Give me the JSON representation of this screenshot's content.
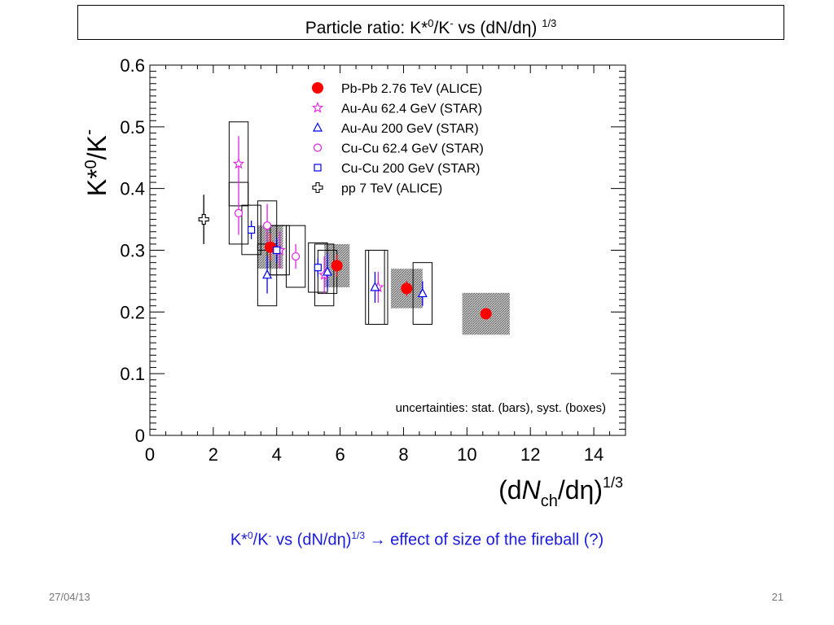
{
  "slide": {
    "title_main": "Particle ratio: K*",
    "title_sup0": "0",
    "title_mid": "/K",
    "title_supminus": "-",
    "title_rest": " vs (dN/dη) ",
    "title_sup13": "1/3",
    "caption_main": "K*",
    "caption_sup0": "0",
    "caption_mid": "/K",
    "caption_supminus": "-",
    "caption_rest": " vs (dN/dη)",
    "caption_sup13": "1/3",
    "caption_arrow": " → effect of size of the fireball (?)",
    "footer_date": "27/04/13",
    "footer_page": "21"
  },
  "chart_data": {
    "type": "scatter",
    "xlim": [
      0,
      15
    ],
    "ylim": [
      0,
      0.6
    ],
    "x_ticks": [
      0,
      2,
      4,
      6,
      8,
      10,
      12,
      14
    ],
    "y_ticks": [
      0,
      0.1,
      0.2,
      0.3,
      0.4,
      0.5,
      0.6
    ],
    "y_tick_labels": [
      "0",
      "0.1",
      "0.2",
      "0.3",
      "0.4",
      "0.5",
      "0.6"
    ],
    "xlabel_parts": {
      "a": "(d",
      "b": "N",
      "sub": "ch",
      "c": "/dη)",
      "sup": "1/3"
    },
    "ylabel_parts": {
      "a": "K*",
      "sup0": "0",
      "b": "/K",
      "supminus": "-"
    },
    "annotation": "uncertainties: stat. (bars), syst. (boxes)",
    "legend_position": "top-right",
    "series": [
      {
        "name": "Pb-Pb 2.76 TeV (ALICE)",
        "marker": "filled-circle",
        "color": "#ff0000",
        "syst_style": "hatched",
        "points": [
          {
            "x": 3.8,
            "y": 0.305,
            "stat": 0.022,
            "syst": 0.035,
            "bw": 0.4
          },
          {
            "x": 5.9,
            "y": 0.275,
            "stat": 0.018,
            "syst": 0.035,
            "bw": 0.4
          },
          {
            "x": 8.1,
            "y": 0.238,
            "stat": 0.012,
            "syst": 0.032,
            "bw": 0.5
          },
          {
            "x": 10.6,
            "y": 0.197,
            "stat": 0.007,
            "syst": 0.034,
            "bw": 0.75
          }
        ]
      },
      {
        "name": "Au-Au 62.4 GeV (STAR)",
        "marker": "open-star",
        "color": "#e020e0",
        "syst_style": "open",
        "points": [
          {
            "x": 2.8,
            "y": 0.44,
            "stat": 0.045,
            "syst": 0.068,
            "bw": 0.3
          },
          {
            "x": 4.1,
            "y": 0.3,
            "stat": 0.03,
            "syst": 0.04,
            "bw": 0.3
          },
          {
            "x": 5.5,
            "y": 0.26,
            "stat": 0.03,
            "syst": 0.05,
            "bw": 0.3
          },
          {
            "x": 7.2,
            "y": 0.24,
            "stat": 0.025,
            "syst": 0.06,
            "bw": 0.3
          }
        ]
      },
      {
        "name": "Au-Au 200 GeV (STAR)",
        "marker": "open-triangle",
        "color": "#0000ff",
        "syst_style": "open",
        "points": [
          {
            "x": 3.7,
            "y": 0.26,
            "stat": 0.03,
            "syst": 0.05,
            "bw": 0.3
          },
          {
            "x": 5.6,
            "y": 0.265,
            "stat": 0.03,
            "syst": 0.035,
            "bw": 0.3
          },
          {
            "x": 7.1,
            "y": 0.24,
            "stat": 0.025,
            "syst": 0.06,
            "bw": 0.3
          },
          {
            "x": 8.6,
            "y": 0.23,
            "stat": 0.02,
            "syst": 0.05,
            "bw": 0.3
          }
        ]
      },
      {
        "name": "Cu-Cu 62.4 GeV (STAR)",
        "marker": "open-circle",
        "color": "#e020e0",
        "syst_style": "open",
        "points": [
          {
            "x": 2.8,
            "y": 0.36,
            "stat": 0.035,
            "syst": 0.05,
            "bw": 0.3
          },
          {
            "x": 3.7,
            "y": 0.34,
            "stat": 0.035,
            "syst": 0.04,
            "bw": 0.3
          },
          {
            "x": 4.6,
            "y": 0.29,
            "stat": 0.02,
            "syst": 0.05,
            "bw": 0.3
          }
        ]
      },
      {
        "name": "Cu-Cu 200 GeV (STAR)",
        "marker": "open-square",
        "color": "#0000ff",
        "syst_style": "open",
        "points": [
          {
            "x": 3.2,
            "y": 0.333,
            "stat": 0.015,
            "syst": 0.04,
            "bw": 0.3
          },
          {
            "x": 4.0,
            "y": 0.3,
            "stat": 0.02,
            "syst": 0.04,
            "bw": 0.3
          },
          {
            "x": 5.3,
            "y": 0.272,
            "stat": 0.015,
            "syst": 0.04,
            "bw": 0.3
          }
        ]
      },
      {
        "name": "pp 7 TeV (ALICE)",
        "marker": "open-cross",
        "color": "#000000",
        "syst_style": "none",
        "points": [
          {
            "x": 1.7,
            "y": 0.35,
            "stat": 0.04,
            "syst": 0,
            "bw": 0
          }
        ]
      }
    ]
  }
}
